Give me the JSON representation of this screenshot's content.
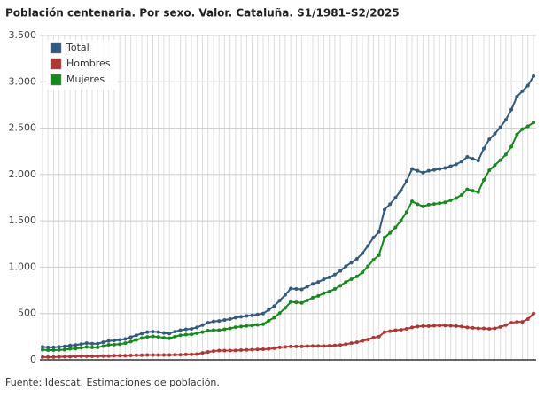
{
  "chart_data": {
    "type": "line",
    "title": "Población centenaria. Por sexo. Valor. Cataluña. S1/1981–S2/2025",
    "source": "Fuente: Idescat. Estimaciones de población.",
    "categories": [
      null,
      null,
      null,
      null,
      null,
      null,
      null,
      null,
      null,
      null,
      null,
      null,
      null,
      null,
      null,
      null,
      null,
      null,
      null,
      null,
      null,
      null,
      null,
      null,
      null,
      null,
      null,
      null,
      null,
      null,
      null,
      null,
      null,
      null,
      null,
      null,
      null,
      null,
      null,
      null,
      null,
      null,
      null,
      null,
      null,
      null,
      null,
      null,
      null,
      null,
      null,
      null,
      null,
      null,
      null,
      null,
      null,
      null,
      null,
      null,
      null,
      null,
      null,
      null,
      null,
      null,
      null,
      null,
      null,
      null,
      null,
      null,
      null,
      null,
      null,
      null,
      null,
      null,
      null,
      null,
      null,
      null,
      null,
      null,
      null,
      null,
      null,
      null,
      null,
      null
    ],
    "series": [
      {
        "name": "Total",
        "color": "#34597f",
        "values": [
          140,
          135,
          135,
          140,
          145,
          155,
          160,
          170,
          180,
          175,
          175,
          190,
          205,
          210,
          215,
          225,
          245,
          265,
          285,
          300,
          305,
          300,
          290,
          285,
          305,
          320,
          330,
          335,
          350,
          375,
          400,
          415,
          420,
          430,
          440,
          455,
          465,
          475,
          480,
          490,
          500,
          540,
          580,
          640,
          700,
          770,
          765,
          760,
          790,
          820,
          840,
          870,
          890,
          920,
          960,
          1010,
          1050,
          1090,
          1150,
          1230,
          1320,
          1380,
          1620,
          1680,
          1750,
          1830,
          1930,
          2060,
          2040,
          2020,
          2040,
          2050,
          2060,
          2070,
          2090,
          2110,
          2140,
          2190,
          2170,
          2150,
          2280,
          2380,
          2440,
          2510,
          2590,
          2700,
          2840,
          2900,
          2960,
          3060
        ]
      },
      {
        "name": "Hombres",
        "color": "#b03535",
        "values": [
          30,
          30,
          30,
          32,
          35,
          35,
          38,
          40,
          40,
          40,
          40,
          42,
          42,
          45,
          45,
          45,
          48,
          50,
          50,
          52,
          52,
          52,
          52,
          52,
          55,
          55,
          58,
          60,
          62,
          75,
          85,
          95,
          100,
          100,
          100,
          102,
          105,
          108,
          110,
          112,
          115,
          118,
          125,
          135,
          140,
          145,
          145,
          145,
          148,
          150,
          150,
          150,
          152,
          155,
          160,
          170,
          180,
          190,
          205,
          220,
          240,
          250,
          300,
          310,
          320,
          325,
          335,
          350,
          360,
          365,
          365,
          368,
          370,
          370,
          368,
          365,
          360,
          350,
          345,
          340,
          340,
          335,
          340,
          355,
          375,
          400,
          410,
          410,
          440,
          500
        ]
      },
      {
        "name": "Mujeres",
        "color": "#17881c",
        "values": [
          110,
          105,
          105,
          108,
          110,
          120,
          122,
          130,
          140,
          135,
          135,
          148,
          163,
          165,
          170,
          180,
          197,
          215,
          235,
          248,
          253,
          248,
          238,
          233,
          250,
          265,
          272,
          275,
          288,
          300,
          315,
          320,
          320,
          330,
          340,
          353,
          360,
          367,
          370,
          378,
          385,
          422,
          455,
          505,
          560,
          625,
          620,
          615,
          642,
          670,
          690,
          720,
          738,
          765,
          800,
          840,
          870,
          900,
          945,
          1010,
          1080,
          1130,
          1320,
          1370,
          1430,
          1505,
          1595,
          1710,
          1680,
          1655,
          1675,
          1682,
          1690,
          1700,
          1722,
          1745,
          1780,
          1840,
          1825,
          1810,
          1940,
          2045,
          2100,
          2155,
          2215,
          2300,
          2430,
          2490,
          2520,
          2560
        ]
      }
    ],
    "ylim": [
      0,
      3500
    ],
    "yticks": [
      {
        "value": 0,
        "label": "0"
      },
      {
        "value": 500,
        "label": "500"
      },
      {
        "value": 1000,
        "label": "1.000"
      },
      {
        "value": 1500,
        "label": "1.500"
      },
      {
        "value": 2000,
        "label": "2.000"
      },
      {
        "value": 2500,
        "label": "2.500"
      },
      {
        "value": 3000,
        "label": "3.000"
      },
      {
        "value": 3500,
        "label": "3.500"
      }
    ],
    "grid": true,
    "legend": "top-left"
  }
}
